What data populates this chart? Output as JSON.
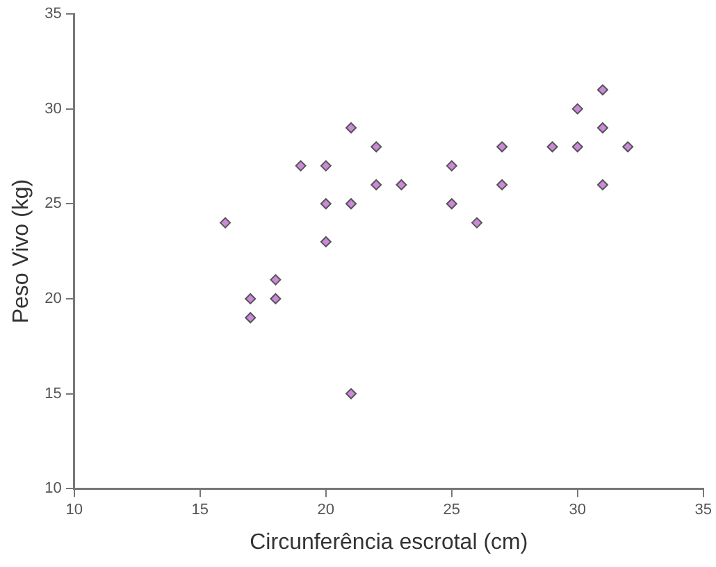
{
  "chart_data": {
    "type": "scatter",
    "xlabel": "Circunferência escrotal (cm)",
    "ylabel": "Peso Vivo (kg)",
    "x": [
      16,
      17,
      17,
      18,
      18,
      19,
      20,
      20,
      20,
      21,
      21,
      21,
      22,
      22,
      23,
      25,
      25,
      26,
      27,
      27,
      29,
      30,
      30,
      31,
      31,
      31,
      32
    ],
    "values": [
      24,
      20,
      19,
      21,
      20,
      27,
      27,
      25,
      23,
      29,
      25,
      15,
      28,
      26,
      26,
      27,
      25,
      24,
      28,
      26,
      28,
      30,
      28,
      31,
      29,
      26,
      28
    ],
    "color": "#cc88dd",
    "xlim": [
      10,
      35
    ],
    "xticks": [
      10,
      15,
      20,
      25,
      30,
      35
    ],
    "ylim": [
      10,
      35
    ],
    "yticks": [
      10,
      15,
      20,
      25,
      30,
      35
    ],
    "grid": false,
    "legend": false,
    "marker": "diamond"
  }
}
